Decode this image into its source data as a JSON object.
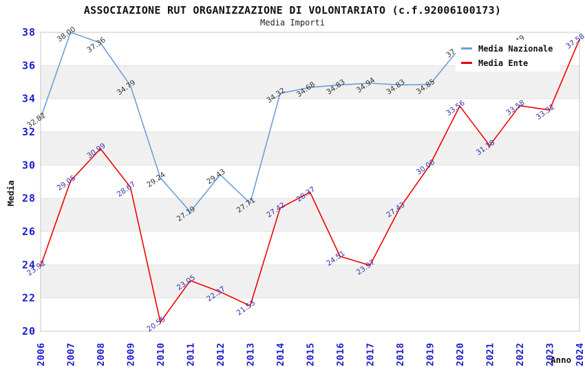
{
  "chart_data": {
    "type": "line",
    "title": "ASSOCIAZIONE RUT ORGANIZZAZIONE DI VOLONTARIATO (c.f.92006100173)",
    "subtitle": "Media Importi",
    "xlabel": "Anno",
    "ylabel": "Media",
    "ylim": [
      20,
      38
    ],
    "y_ticks": [
      20,
      22,
      24,
      26,
      28,
      30,
      32,
      34,
      36,
      38
    ],
    "grid": "horizontal-bands",
    "gray_bands": [
      [
        22,
        24
      ],
      [
        26,
        28
      ],
      [
        30,
        32
      ],
      [
        34,
        36
      ]
    ],
    "legend_position": "top-right",
    "x": [
      "2006",
      "2007",
      "2008",
      "2009",
      "2010",
      "2011",
      "2012",
      "2013",
      "2014",
      "2015",
      "2016",
      "2017",
      "2018",
      "2019",
      "2020",
      "2021",
      "2022",
      "2023",
      "2024"
    ],
    "series": [
      {
        "name": "Media Nazionale",
        "color": "#6a9fd8",
        "label_color": "#333333",
        "values": [
          32.82,
          38.0,
          37.36,
          34.79,
          29.24,
          27.19,
          29.43,
          27.71,
          34.32,
          34.68,
          34.83,
          34.94,
          34.83,
          34.85,
          37.05,
          null,
          37.49,
          null,
          null
        ]
      },
      {
        "name": "Media Ente",
        "color": "#ee0000",
        "label_color": "#3333aa",
        "values": [
          23.92,
          29.05,
          30.99,
          28.67,
          20.55,
          23.05,
          22.37,
          21.53,
          27.42,
          28.37,
          24.51,
          23.97,
          27.43,
          30.0,
          33.56,
          31.18,
          33.58,
          33.32,
          37.58
        ]
      }
    ],
    "colors": {
      "axis_tick_text": "#1c1ccd",
      "band_gray": "#f0f0f0",
      "grid_line": "#e3e3e3",
      "plot_border": "#c4c4c4",
      "title_text": "#111111"
    }
  }
}
